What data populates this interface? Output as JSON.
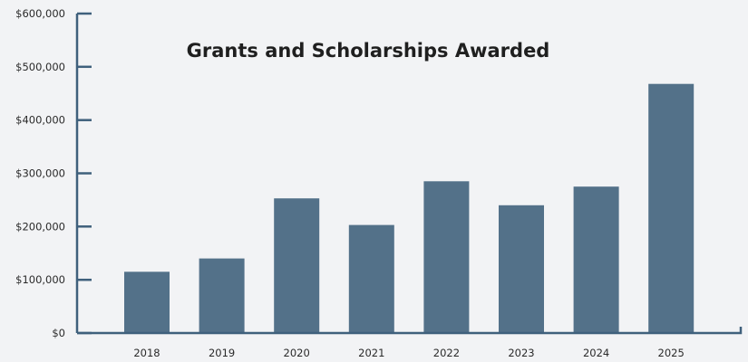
{
  "chart_data": {
    "type": "bar",
    "title": "Grants and Scholarships Awarded",
    "xlabel": "",
    "ylabel": "",
    "categories": [
      "2018",
      "2019",
      "2020",
      "2021",
      "2022",
      "2023",
      "2024",
      "2025"
    ],
    "values": [
      115000,
      140000,
      253000,
      203000,
      285000,
      240000,
      275000,
      468000
    ],
    "ylim": [
      0,
      600000
    ],
    "yticks": [
      0,
      100000,
      200000,
      300000,
      400000,
      500000,
      600000
    ],
    "ytick_labels": [
      "$0",
      "$100,000",
      "$200,000",
      "$300,000",
      "$400,000",
      "$500,000",
      "$600,000"
    ],
    "grid": false,
    "legend": "none",
    "colors": {
      "bar": "#537189",
      "axis": "#3f607c",
      "background": "#f2f3f5",
      "text": "#1f1f1f"
    }
  }
}
